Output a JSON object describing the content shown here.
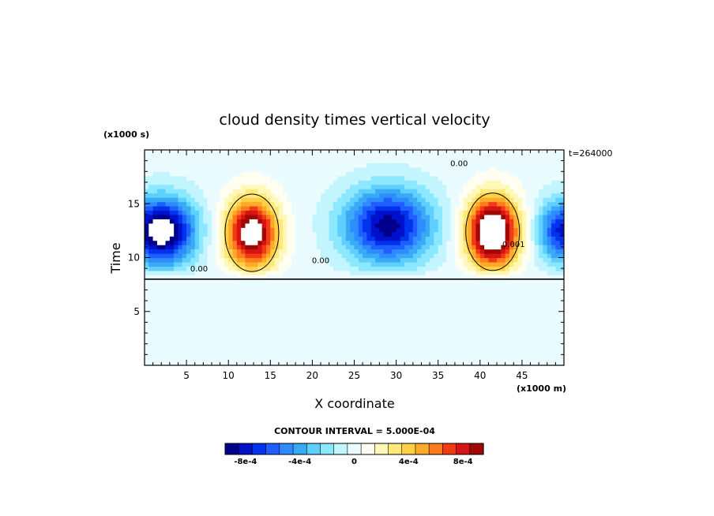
{
  "chart_data": {
    "type": "heatmap",
    "title": "cloud density times vertical velocity",
    "xlabel": "X coordinate",
    "ylabel": "Time",
    "x_scale_label": "(x1000 m)",
    "y_scale_label": "(x1000 s)",
    "time_label": "t=264000",
    "xlim": [
      0,
      50
    ],
    "ylim": [
      0,
      20
    ],
    "xticks": [
      5,
      10,
      15,
      20,
      25,
      30,
      35,
      40,
      45
    ],
    "yticks": [
      5,
      10,
      15
    ],
    "contour_interval_text": "CONTOUR INTERVAL = 5.000E-04",
    "contour_labels": [
      "0.00",
      "0.00",
      "0.00",
      "0.001"
    ],
    "colorbar": {
      "colors": [
        "#00008b",
        "#0011cc",
        "#0033ee",
        "#1f5fff",
        "#2f8cff",
        "#3aaaf5",
        "#5ecfff",
        "#8ce8ff",
        "#c2f5ff",
        "#eafcff",
        "#fffef0",
        "#fff8b8",
        "#ffe97a",
        "#ffd045",
        "#ffaa2a",
        "#ff7b1f",
        "#f23b14",
        "#d61414",
        "#a00808"
      ],
      "tick_labels": [
        "-8e-4",
        "-4e-4",
        "0",
        "4e-4",
        "8e-4"
      ],
      "tick_values": [
        -0.0008,
        -0.0004,
        0,
        0.0004,
        0.0008
      ],
      "range": [
        -0.00095,
        0.00095
      ]
    },
    "features": [
      {
        "kind": "updraft",
        "x_center": 12.8,
        "y_center": 12.3,
        "peak": 0.0011
      },
      {
        "kind": "updraft",
        "x_center": 41.5,
        "y_center": 12.4,
        "peak": 0.0013
      },
      {
        "kind": "downdraft",
        "x_center": 2.0,
        "y_center": 12.5,
        "peak": -0.0011
      },
      {
        "kind": "downdraft",
        "x_center": 29.0,
        "y_center": 13.0,
        "peak": -0.0009
      },
      {
        "kind": "downdraft",
        "x_center": 50.0,
        "y_center": 12.5,
        "peak": -0.0008
      }
    ],
    "zero_region_below_y": 8.0
  }
}
